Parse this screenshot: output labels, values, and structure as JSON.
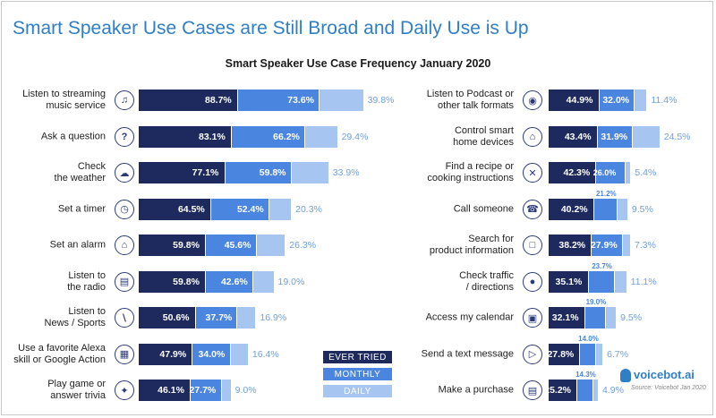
{
  "title": "Smart Speaker Use Cases are Still Broad and Daily Use is Up",
  "subtitle": "Smart Speaker Use Case Frequency January 2020",
  "brand": "voicebot.ai",
  "source": "Source: Voicebot Jan 2020",
  "colors": {
    "ever_tried": "#1e2a5e",
    "monthly": "#4a86e0",
    "daily": "#a6c5f0",
    "daily_text": "#6f9fdc"
  },
  "legend": [
    "EVER TRIED",
    "MONTHLY",
    "DAILY"
  ],
  "chart_data": {
    "type": "bar",
    "title": "Smart Speaker Use Case Frequency January 2020",
    "unit": "%",
    "series_names": [
      "EVER TRIED",
      "MONTHLY",
      "DAILY"
    ],
    "left_panel": [
      {
        "label": "Listen to streaming\nmusic service",
        "icon": "music-note-icon",
        "values": [
          88.7,
          73.6,
          39.8
        ]
      },
      {
        "label": "Ask a question",
        "icon": "question-mark-icon",
        "values": [
          83.1,
          66.2,
          29.4
        ]
      },
      {
        "label": "Check\nthe weather",
        "icon": "cloud-icon",
        "values": [
          77.1,
          59.8,
          33.9
        ]
      },
      {
        "label": "Set a timer",
        "icon": "timer-icon",
        "values": [
          64.5,
          52.4,
          20.3
        ]
      },
      {
        "label": "Set an alarm",
        "icon": "bell-icon",
        "values": [
          59.8,
          45.6,
          26.3
        ]
      },
      {
        "label": "Listen to\nthe radio",
        "icon": "radio-icon",
        "values": [
          59.8,
          42.6,
          19.0
        ]
      },
      {
        "label": "Listen to\nNews / Sports",
        "icon": "microphone-icon",
        "values": [
          50.6,
          37.7,
          16.9
        ]
      },
      {
        "label": "Use a favorite Alexa\nskill or Google Action",
        "icon": "app-grid-icon",
        "values": [
          47.9,
          34.0,
          16.4
        ]
      },
      {
        "label": "Play game or\nanswer trivia",
        "icon": "puzzle-icon",
        "values": [
          46.1,
          27.7,
          9.0
        ]
      }
    ],
    "right_panel": [
      {
        "label": "Listen to Podcast or\nother talk formats",
        "icon": "podcast-icon",
        "values": [
          44.9,
          32.0,
          11.4
        ]
      },
      {
        "label": "Control smart\nhome devices",
        "icon": "smart-home-icon",
        "values": [
          43.4,
          31.9,
          24.5
        ]
      },
      {
        "label": "Find a recipe or\ncooking instructions",
        "icon": "utensils-icon",
        "values": [
          42.3,
          26.0,
          5.4
        ]
      },
      {
        "label": "Call someone",
        "icon": "phone-icon",
        "values": [
          40.2,
          21.2,
          9.5
        ]
      },
      {
        "label": "Search for\nproduct information",
        "icon": "shopping-bag-icon",
        "values": [
          38.2,
          27.9,
          7.3
        ]
      },
      {
        "label": "Check traffic\n/ directions",
        "icon": "map-pin-icon",
        "values": [
          35.1,
          23.7,
          11.1
        ]
      },
      {
        "label": "Access my calendar",
        "icon": "calendar-icon",
        "values": [
          32.1,
          19.0,
          9.5
        ]
      },
      {
        "label": "Send a text message",
        "icon": "send-icon",
        "values": [
          27.8,
          14.0,
          6.7
        ]
      },
      {
        "label": "Make a purchase",
        "icon": "shopping-cart-icon",
        "values": [
          25.2,
          14.3,
          4.9
        ]
      }
    ]
  }
}
